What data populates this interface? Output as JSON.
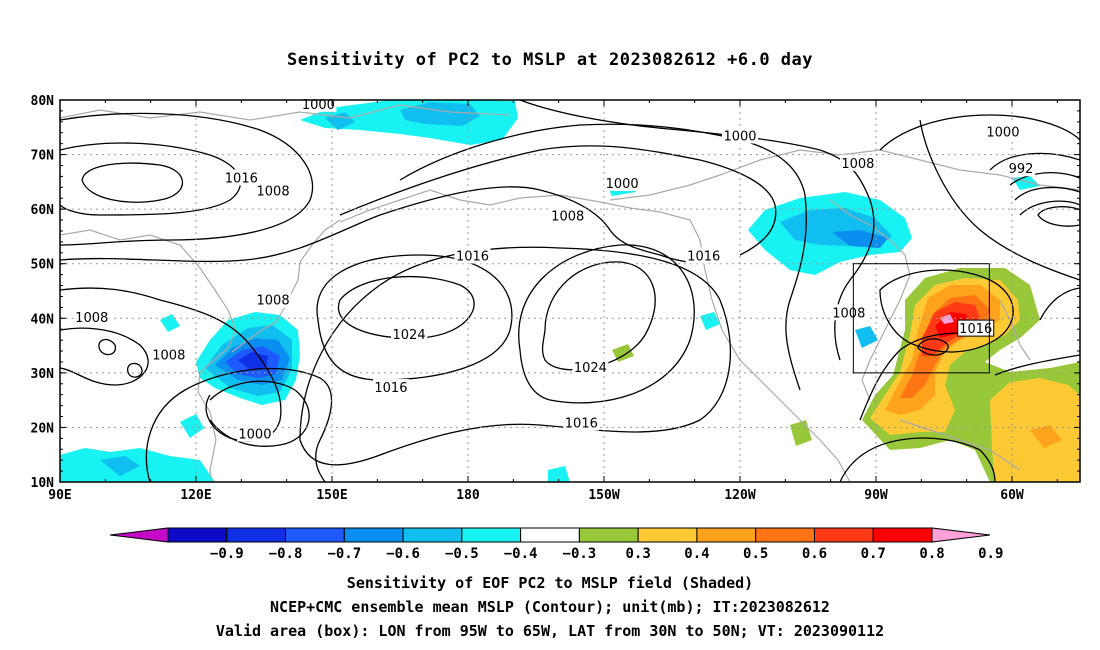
{
  "title": "Sensitivity of PC2 to MSLP at 2023082612 +6.0 day",
  "axes": {
    "lat_labels": [
      "80N",
      "70N",
      "60N",
      "50N",
      "40N",
      "30N",
      "20N",
      "10N"
    ],
    "lon_labels": [
      "90E",
      "120E",
      "150E",
      "180",
      "150W",
      "120W",
      "90W",
      "60W"
    ]
  },
  "contour_labels": [
    {
      "text": "1000",
      "lon": 147,
      "lat": 79.3
    },
    {
      "text": "1000",
      "lon": 240,
      "lat": 73.5
    },
    {
      "text": "1000",
      "lon": 214,
      "lat": 64.8
    },
    {
      "text": "1000",
      "lon": 298,
      "lat": 74.2
    },
    {
      "text": "992",
      "lon": 302,
      "lat": 67.5
    },
    {
      "text": "1008",
      "lon": 266,
      "lat": 68.5
    },
    {
      "text": "1016",
      "lon": 130,
      "lat": 65.8
    },
    {
      "text": "1008",
      "lon": 137,
      "lat": 63.4
    },
    {
      "text": "1008",
      "lon": 202,
      "lat": 58.8
    },
    {
      "text": "1016",
      "lon": 181,
      "lat": 51.5
    },
    {
      "text": "1016",
      "lon": 232,
      "lat": 51.5
    },
    {
      "text": "1008",
      "lon": 137,
      "lat": 43.4
    },
    {
      "text": "1008",
      "lon": 97,
      "lat": 40.2
    },
    {
      "text": "1024",
      "lon": 167,
      "lat": 37.1
    },
    {
      "text": "1008",
      "lon": 114,
      "lat": 33.4
    },
    {
      "text": "1016",
      "lon": 163,
      "lat": 27.4
    },
    {
      "text": "1024",
      "lon": 207,
      "lat": 31.1
    },
    {
      "text": "1016",
      "lon": 205,
      "lat": 20.9
    },
    {
      "text": "1000",
      "lon": 133,
      "lat": 18.9
    },
    {
      "text": "1008",
      "lon": 264,
      "lat": 41.1
    },
    {
      "text": "1016",
      "lon": 292,
      "lat": 38.2
    }
  ],
  "colorbar": {
    "labels": [
      "−0.9",
      "−0.8",
      "−0.7",
      "−0.6",
      "−0.5",
      "−0.4",
      "−0.3",
      "0.3",
      "0.4",
      "0.5",
      "0.6",
      "0.7",
      "0.8",
      "0.9"
    ],
    "colors": [
      "#0b0bc8",
      "#1030e6",
      "#1e5aff",
      "#0a8ef0",
      "#10bff0",
      "#19f2f2",
      "#ffffff",
      "#98c83a",
      "#ffc933",
      "#ffa21c",
      "#ff7514",
      "#ff3a14",
      "#ff0000"
    ],
    "low_extend_color": "#c40ac8",
    "high_extend_color": "#ffa0d8"
  },
  "valid_box": {
    "lon_min": 265,
    "lon_max": 295,
    "lat_min": 30,
    "lat_max": 50
  },
  "captions": [
    "Sensitivity of EOF PC2 to MSLP field (Shaded)",
    "NCEP+CMC ensemble mean MSLP (Contour); unit(mb); IT:2023082612",
    "Valid area (box): LON from 95W to 65W, LAT from 30N to 50N; VT: 2023090112"
  ]
}
